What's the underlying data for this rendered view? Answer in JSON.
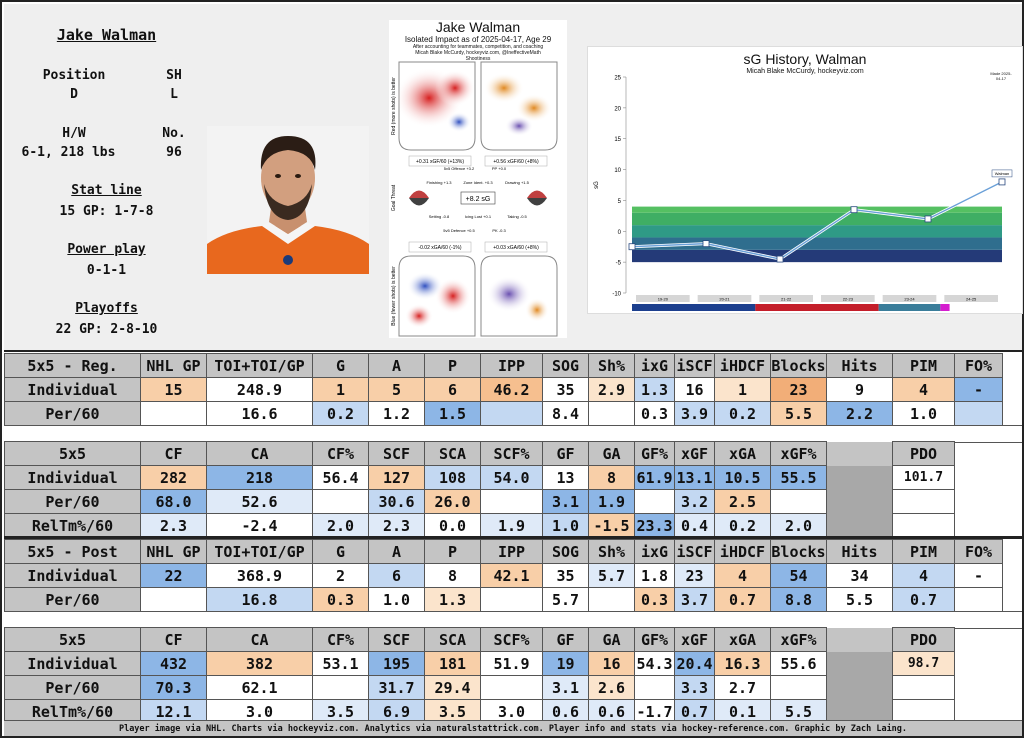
{
  "player": {
    "name": "Jake Walman",
    "position_label": "Position",
    "position": "D",
    "shoots_label": "SH",
    "shoots": "L",
    "hw_label": "H/W",
    "hw": "6-1, 218 lbs",
    "no_label": "No.",
    "no": "96",
    "statline_label": "Stat line",
    "statline": "15 GP: 1-7-8",
    "pp_label": "Power play",
    "pp": "0-1-1",
    "playoffs_label": "Playoffs",
    "playoffs": "22 GP: 2-8-10"
  },
  "impact": {
    "title": "Jake Walman",
    "subtitle": "Isolated Impact as of 2025-04-17, Age 29",
    "note1": "After accounting for teammates, competition, and coaching",
    "note2": "Micah Blake McCurdy, hockeyviz.com, @IneffectiveMath",
    "top_label": "Shootiness",
    "left_top": "Red (more shots) is better",
    "left_bottom": "Blue (fewer shots) is better",
    "off_left": "+0.31 xGF/60 (+13%)",
    "off_right": "+0.56 xGF/60 (+8%)",
    "def_left": "-0.02 xGA/60 (-1%)",
    "def_right": "+0.03 xGA/60 (+8%)",
    "center": "+8.2 sG",
    "goal_threat": "Goal Threat",
    "box1": "5v5 Offence +3.2",
    "box2": "PP +0.0",
    "box3": "Finishing +1.3",
    "box4": "Zone Ident. +0.3",
    "box5": "Drawing +1.5",
    "box6": "Setting -0.8",
    "box7": "Icing Lost +0.1",
    "box8": "Taking -0.5",
    "box9": "5v5 Defence +0.5",
    "box10": "PK -0.3"
  },
  "sg_chart": {
    "title": "sG History, Walman",
    "subtitle": "Micah Blake McCurdy, hockeyviz.com",
    "ylabel": "sG",
    "corner": "Made 2025-04-17",
    "end_label": "Walman",
    "seasons": [
      "20-21",
      "21-22",
      "22-23",
      "23-24",
      "24-25"
    ]
  },
  "chart_data": {
    "type": "line",
    "title": "sG History, Walman",
    "xlabel": "",
    "ylabel": "sG",
    "ylim": [
      -10,
      25
    ],
    "yticks": [
      -10,
      -5,
      0,
      5,
      10,
      15,
      20,
      25
    ],
    "x": [
      "19-20",
      "20-21",
      "21-22",
      "22-23",
      "23-24",
      "24-25"
    ],
    "series": [
      {
        "name": "Walman",
        "values": [
          -2.5,
          -2,
          -4.5,
          3.5,
          2,
          8
        ]
      }
    ],
    "bands": [
      -5,
      -3,
      -1,
      1,
      3,
      4
    ]
  },
  "reg_individual": {
    "header": [
      "5x5 - Reg.",
      "NHL GP",
      "TOI+TOI/GP",
      "G",
      "A",
      "P",
      "IPP",
      "SOG",
      "Sh%",
      "ixG",
      "iSCF",
      "iHDCF",
      "Blocks",
      "Hits",
      "PIM",
      "FO%"
    ],
    "rows": [
      [
        "Individual",
        "15",
        "248.9",
        "1",
        "5",
        "6",
        "46.2",
        "35",
        "2.9",
        "1.3",
        "16",
        "1",
        "23",
        "9",
        "4",
        "-"
      ],
      [
        "Per/60",
        "",
        "16.6",
        "0.2",
        "1.2",
        "1.5",
        "",
        "8.4",
        "",
        "0.3",
        "3.9",
        "0.2",
        "5.5",
        "2.2",
        "1.0",
        ""
      ]
    ]
  },
  "reg_onice": {
    "header": [
      "5x5",
      "CF",
      "CA",
      "CF%",
      "SCF",
      "SCA",
      "SCF%",
      "GF",
      "GA",
      "GF%",
      "xGF",
      "xGA",
      "xGF%",
      "",
      "PDO"
    ],
    "rows": [
      [
        "Individual",
        "282",
        "218",
        "56.4",
        "127",
        "108",
        "54.0",
        "13",
        "8",
        "61.9",
        "13.1",
        "10.5",
        "55.5",
        "",
        "101.7"
      ],
      [
        "Per/60",
        "68.0",
        "52.6",
        "",
        "30.6",
        "26.0",
        "",
        "3.1",
        "1.9",
        "",
        "3.2",
        "2.5",
        "",
        "",
        ""
      ],
      [
        "RelTm%/60",
        "2.3",
        "-2.4",
        "2.0",
        "2.3",
        "0.0",
        "1.9",
        "1.0",
        "-1.5",
        "23.3",
        "0.4",
        "0.2",
        "2.0",
        "",
        ""
      ]
    ]
  },
  "post_individual": {
    "header": [
      "5x5 - Post",
      "NHL GP",
      "TOI+TOI/GP",
      "G",
      "A",
      "P",
      "IPP",
      "SOG",
      "Sh%",
      "ixG",
      "iSCF",
      "iHDCF",
      "Blocks",
      "Hits",
      "PIM",
      "FO%"
    ],
    "rows": [
      [
        "Individual",
        "22",
        "368.9",
        "2",
        "6",
        "8",
        "42.1",
        "35",
        "5.7",
        "1.8",
        "23",
        "4",
        "54",
        "34",
        "4",
        "-"
      ],
      [
        "Per/60",
        "",
        "16.8",
        "0.3",
        "1.0",
        "1.3",
        "",
        "5.7",
        "",
        "0.3",
        "3.7",
        "0.7",
        "8.8",
        "5.5",
        "0.7",
        ""
      ]
    ]
  },
  "post_onice": {
    "header": [
      "5x5",
      "CF",
      "CA",
      "CF%",
      "SCF",
      "SCA",
      "SCF%",
      "GF",
      "GA",
      "GF%",
      "xGF",
      "xGA",
      "xGF%",
      "",
      "PDO"
    ],
    "rows": [
      [
        "Individual",
        "432",
        "382",
        "53.1",
        "195",
        "181",
        "51.9",
        "19",
        "16",
        "54.3",
        "20.4",
        "16.3",
        "55.6",
        "",
        "98.7"
      ],
      [
        "Per/60",
        "70.3",
        "62.1",
        "",
        "31.7",
        "29.4",
        "",
        "3.1",
        "2.6",
        "",
        "3.3",
        "2.7",
        "",
        "",
        ""
      ],
      [
        "RelTm%/60",
        "12.1",
        "3.0",
        "3.5",
        "6.9",
        "3.5",
        "3.0",
        "0.6",
        "0.6",
        "-1.7",
        "0.7",
        "0.1",
        "5.5",
        "",
        ""
      ]
    ]
  },
  "colors": {
    "tables": [
      [
        [
          "o2",
          "w",
          "o2",
          "o2",
          "o2",
          "o3",
          "w",
          "o1",
          "b1",
          "w",
          "o1",
          "o4",
          "w",
          "o2",
          "b2",
          "w"
        ],
        [
          "",
          "w",
          "b1",
          "w",
          "b2",
          "b1",
          "w",
          "w",
          "w",
          "b1",
          "b1",
          "o2",
          "b2",
          "w",
          "b1",
          "w"
        ]
      ],
      [
        [
          "o2",
          "b2",
          "w",
          "o2",
          "b1",
          "b1",
          "w",
          "o2",
          "b2",
          "b2",
          "b2",
          "b2",
          "w",
          "",
          "o1"
        ],
        [
          "b2",
          "b0",
          "w",
          "b1",
          "o2",
          "w",
          "b2",
          "b2",
          "w",
          "b1",
          "o2",
          "w",
          "",
          "w"
        ],
        [
          "b0",
          "w",
          "b0",
          "b0",
          "w",
          "b0",
          "b1",
          "o2",
          "b2",
          "b0",
          "b0",
          "b0",
          "",
          "w"
        ]
      ],
      [
        [
          "b2",
          "w",
          "w",
          "b1",
          "w",
          "o2",
          "w",
          "b0",
          "w",
          "b0",
          "o2",
          "b2",
          "w",
          "b1",
          "w"
        ],
        [
          "w",
          "b1",
          "o2",
          "w",
          "o1",
          "w",
          "w",
          "w",
          "o2",
          "b1",
          "o2",
          "b2",
          "w",
          "b1",
          "w"
        ]
      ],
      [
        [
          "b2",
          "o2",
          "w",
          "b2",
          "o2",
          "w",
          "b2",
          "o2",
          "w",
          "b2",
          "o2",
          "w",
          "",
          "o1"
        ],
        [
          "b2",
          "w",
          "w",
          "b1",
          "o1",
          "w",
          "b0",
          "o1",
          "w",
          "b1",
          "w",
          "w",
          "",
          "w"
        ],
        [
          "b1",
          "w",
          "b0",
          "b1",
          "o1",
          "w",
          "b0",
          "b0",
          "w",
          "b1",
          "b0",
          "b0",
          "",
          "w"
        ]
      ]
    ]
  },
  "footer": "Player image via NHL. Charts via hockeyviz.com. Analytics via naturalstattrick.com. Player info and stats via hockey-reference.com. Graphic by Zach Laing."
}
